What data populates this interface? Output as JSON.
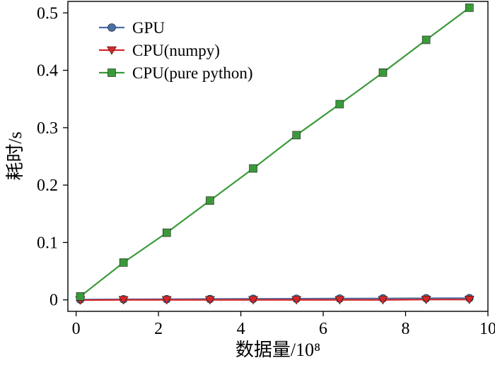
{
  "chart_data": {
    "type": "line",
    "xlabel": "数据量/10⁸",
    "ylabel": "耗时/s",
    "xlim": [
      -0.2,
      10
    ],
    "ylim": [
      -0.02,
      0.52
    ],
    "x_ticks": [
      0,
      2,
      4,
      6,
      8,
      10
    ],
    "x_tick_labels": [
      "0",
      "2",
      "4",
      "6",
      "8",
      "10"
    ],
    "y_ticks": [
      0,
      0.1,
      0.2,
      0.3,
      0.4,
      0.5
    ],
    "y_tick_labels": [
      "0",
      "0.1",
      "0.2",
      "0.3",
      "0.4",
      "0.5"
    ],
    "grid": false,
    "legend_position": "top-left",
    "x": [
      0.1,
      1.15,
      2.2,
      3.25,
      4.3,
      5.35,
      6.4,
      7.45,
      8.5,
      9.55
    ],
    "series": [
      {
        "name": "GPU",
        "color": "#4a6fa5",
        "marker": "circle",
        "values": [
          0.0005,
          0.001,
          0.0012,
          0.0015,
          0.0018,
          0.002,
          0.0023,
          0.0025,
          0.0028,
          0.003
        ]
      },
      {
        "name": "CPU(numpy)",
        "color": "#d62728",
        "marker": "triangle-down",
        "values": [
          -0.0005,
          0.0,
          0.0,
          0.0,
          0.0,
          0.0,
          0.0,
          0.0,
          0.0005,
          0.0005
        ]
      },
      {
        "name": "CPU(pure python)",
        "color": "#3a9a3a",
        "marker": "square",
        "values": [
          0.006,
          0.065,
          0.117,
          0.173,
          0.229,
          0.287,
          0.341,
          0.396,
          0.453,
          0.509
        ]
      }
    ]
  }
}
